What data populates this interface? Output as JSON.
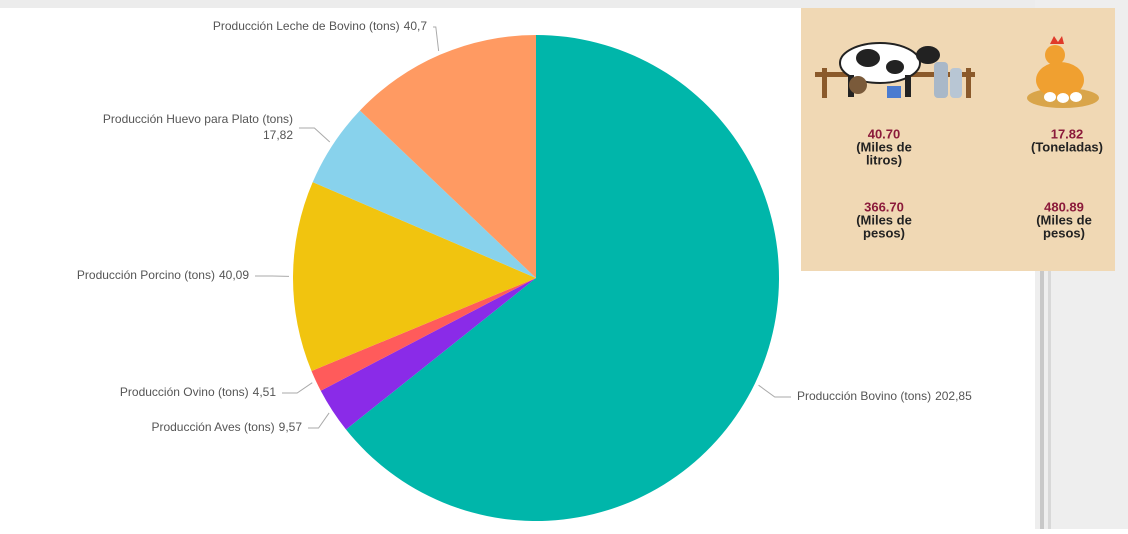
{
  "chart_data": {
    "type": "pie",
    "categories": [
      "Producción Bovino (tons)",
      "Producción Aves (tons)",
      "Producción Ovino (tons)",
      "Producción Porcino (tons)",
      "Producción Huevo para Plato (tons)",
      "Producción Leche de Bovino (tons)"
    ],
    "values": [
      202.85,
      9.57,
      4.51,
      40.09,
      17.82,
      40.7
    ],
    "value_labels": [
      "202,85",
      "9,57",
      "4,51",
      "40,09",
      "17,82",
      "40,7"
    ],
    "colors": [
      "#00b6aa",
      "#8a2be8",
      "#ff5b5b",
      "#f1c40f",
      "#88d2ec",
      "#ff9a62"
    ]
  },
  "infographic": {
    "items": [
      {
        "value": "40.70",
        "unit": [
          "(Miles de",
          "litros)"
        ]
      },
      {
        "value": "17.82",
        "unit": [
          "(Toneladas)"
        ]
      },
      {
        "value": "366.70",
        "unit": [
          "(Miles de",
          "pesos)"
        ]
      },
      {
        "value": "480.89",
        "unit": [
          "(Miles de",
          "pesos)"
        ]
      }
    ]
  }
}
